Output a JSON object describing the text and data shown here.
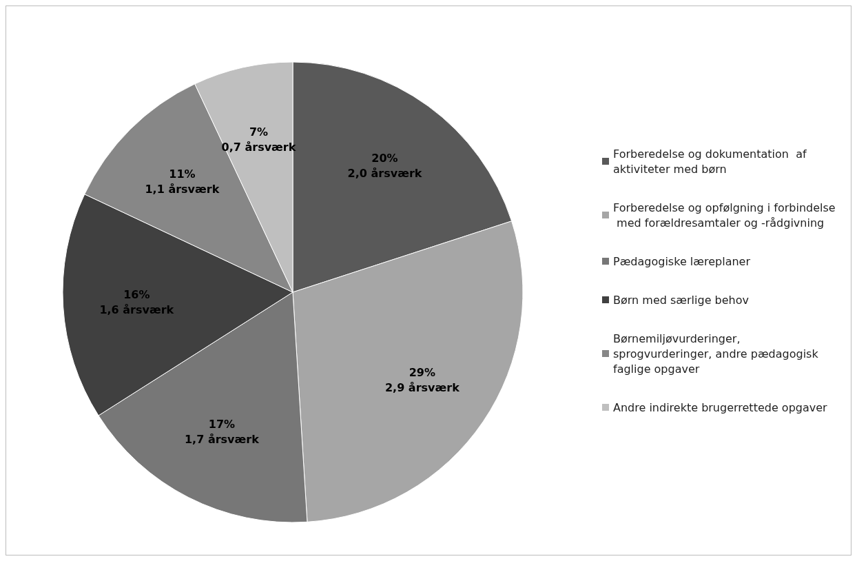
{
  "chart_data": {
    "type": "pie",
    "categories": [
      "Forberedelse og dokumentation  af aktiviteter med børn",
      "Forberedelse og opfølgning i forbindelse med forældresamtaler og -rådgivning",
      "Pædagogiske læreplaner",
      "Børn med særlige behov",
      "Børnemiljøvurderinger, sprogvurderinger, andre pædagogisk faglige opgaver",
      "Andre indirekte brugerrettede opgaver"
    ],
    "values": [
      20,
      29,
      17,
      16,
      11,
      7
    ],
    "colors": [
      "#595959",
      "#a6a6a6",
      "#777777",
      "#404040",
      "#878787",
      "#bfbfbf"
    ],
    "value_labels": [
      "20%\n2,0 årsværk",
      "29%\n2,9 årsværk",
      "17%\n1,7 årsværk",
      "16%\n1,6 årsværk",
      "11%\n1,1 årsværk",
      "7%\n0,7 årsværk"
    ],
    "legend": "right"
  }
}
